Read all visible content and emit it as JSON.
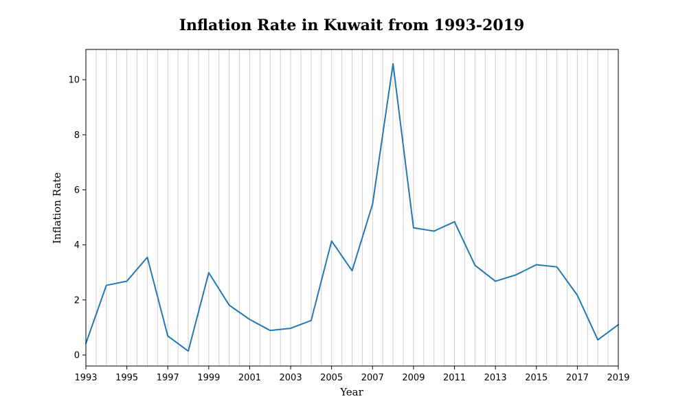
{
  "chart_data": {
    "type": "line",
    "title": "Inflation Rate in Kuwait from 1993-2019",
    "xlabel": "Year",
    "ylabel": "Inflation Rate",
    "xlim": [
      1993,
      2019
    ],
    "ylim": [
      -0.4,
      11.1
    ],
    "x": [
      1993,
      1994,
      1995,
      1996,
      1997,
      1998,
      1999,
      2000,
      2001,
      2002,
      2003,
      2004,
      2005,
      2006,
      2007,
      2008,
      2009,
      2010,
      2011,
      2012,
      2013,
      2014,
      2015,
      2016,
      2017,
      2018,
      2019
    ],
    "series": [
      {
        "values": [
          0.42,
          2.53,
          2.68,
          3.55,
          0.69,
          0.14,
          2.99,
          1.81,
          1.29,
          0.89,
          0.97,
          1.25,
          4.14,
          3.06,
          5.48,
          10.58,
          4.62,
          4.5,
          4.84,
          3.26,
          2.68,
          2.91,
          3.28,
          3.2,
          2.17,
          0.55,
          1.1
        ],
        "color": "#1f77b4"
      }
    ],
    "x_ticks": [
      "1993",
      "1995",
      "1997",
      "1999",
      "2001",
      "2003",
      "2005",
      "2007",
      "2009",
      "2011",
      "2013",
      "2015",
      "2017",
      "2019"
    ],
    "y_ticks": [
      "0",
      "2",
      "4",
      "6",
      "8",
      "10"
    ],
    "grid": "vertical-minor-yearly",
    "legend": "none"
  }
}
